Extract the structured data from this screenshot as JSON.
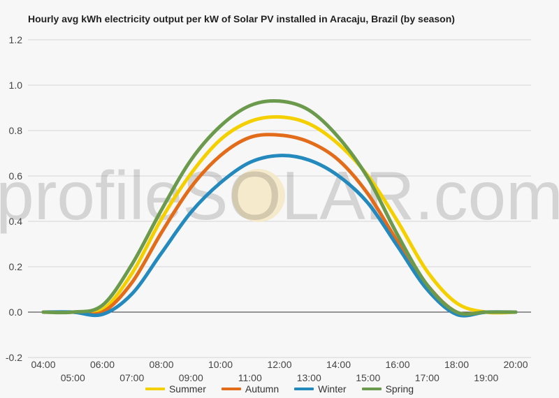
{
  "chart_data": {
    "type": "line",
    "title": "Hourly avg kWh electricity output per kW of Solar PV installed in Aracaju, Brazil (by season)",
    "xlabel": "",
    "ylabel": "",
    "ylim": [
      -0.2,
      1.2
    ],
    "yticks": [
      "-0.2",
      "0.0",
      "0.2",
      "0.4",
      "0.6",
      "0.8",
      "1.0",
      "1.2"
    ],
    "x": [
      "04:00",
      "05:00",
      "06:00",
      "07:00",
      "08:00",
      "09:00",
      "10:00",
      "11:00",
      "12:00",
      "13:00",
      "14:00",
      "15:00",
      "16:00",
      "17:00",
      "18:00",
      "19:00",
      "20:00"
    ],
    "grid": true,
    "legend_position": "bottom",
    "watermark": "profileSOLAR.com",
    "series": [
      {
        "name": "Summer",
        "color": "#f5d000",
        "values": [
          0.0,
          0.0,
          0.01,
          0.17,
          0.41,
          0.61,
          0.76,
          0.84,
          0.86,
          0.83,
          0.74,
          0.6,
          0.4,
          0.18,
          0.04,
          0.0,
          0.0
        ]
      },
      {
        "name": "Autumn",
        "color": "#e36c1b",
        "values": [
          0.0,
          0.0,
          0.0,
          0.13,
          0.35,
          0.55,
          0.69,
          0.77,
          0.78,
          0.75,
          0.67,
          0.52,
          0.31,
          0.12,
          0.0,
          0.0,
          0.0
        ]
      },
      {
        "name": "Winter",
        "color": "#2489bd",
        "values": [
          0.0,
          0.0,
          -0.01,
          0.08,
          0.26,
          0.44,
          0.57,
          0.66,
          0.69,
          0.67,
          0.6,
          0.48,
          0.29,
          0.1,
          -0.01,
          0.0,
          0.0
        ]
      },
      {
        "name": "Spring",
        "color": "#6b9a4c",
        "values": [
          0.0,
          0.0,
          0.03,
          0.21,
          0.45,
          0.67,
          0.82,
          0.91,
          0.93,
          0.89,
          0.77,
          0.59,
          0.34,
          0.12,
          0.0,
          0.0,
          0.0
        ]
      }
    ]
  }
}
